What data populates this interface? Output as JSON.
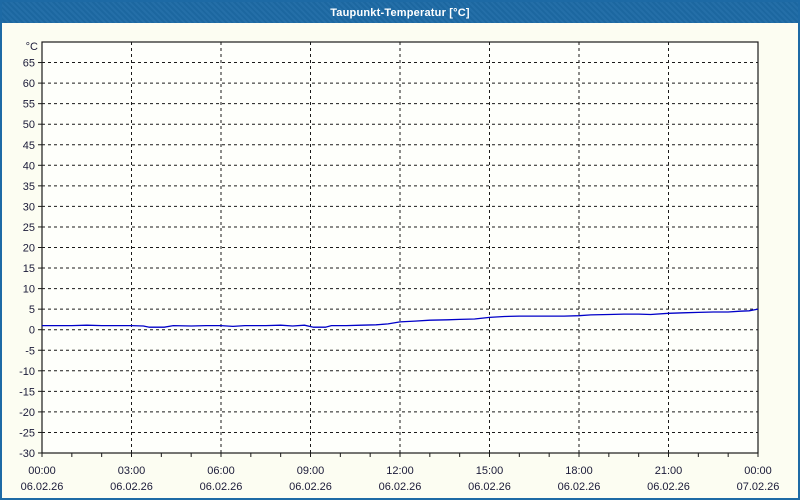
{
  "window": {
    "title": "Taupunkt-Temperatur [°C]"
  },
  "colors": {
    "titlebar_bg": "#1d6aa5",
    "titlebar_text": "#ffffff",
    "window_border": "#1d6aa5",
    "window_bg": "#fcfdf2",
    "plot_bg": "#fefffb",
    "plot_border": "#1a1a1a",
    "grid": "#1a1a1a",
    "tick_text": "#1a1a38",
    "line": "#0000c8"
  },
  "chart_data": {
    "type": "line",
    "title": "Taupunkt-Temperatur [°C]",
    "y_axis_unit": "°C",
    "ylim": [
      -30,
      70
    ],
    "xlim_hours": [
      0,
      24
    ],
    "grid": "dashed",
    "legend": "none",
    "y_tick_labels": [
      65,
      60,
      55,
      50,
      45,
      40,
      35,
      30,
      25,
      20,
      15,
      10,
      5,
      0,
      -5,
      -10,
      -15,
      -20,
      -25,
      -30
    ],
    "x_gridline_hours": [
      3,
      6,
      9,
      12,
      15,
      18,
      21
    ],
    "x_minor_tick_step_hours": 1,
    "x_ticks": [
      {
        "hour": 0,
        "time": "00:00",
        "date": "06.02.26"
      },
      {
        "hour": 3,
        "time": "03:00",
        "date": "06.02.26"
      },
      {
        "hour": 6,
        "time": "06:00",
        "date": "06.02.26"
      },
      {
        "hour": 9,
        "time": "09:00",
        "date": "06.02.26"
      },
      {
        "hour": 12,
        "time": "12:00",
        "date": "06.02.26"
      },
      {
        "hour": 15,
        "time": "15:00",
        "date": "06.02.26"
      },
      {
        "hour": 18,
        "time": "18:00",
        "date": "06.02.26"
      },
      {
        "hour": 21,
        "time": "21:00",
        "date": "06.02.26"
      },
      {
        "hour": 24,
        "time": "00:00",
        "date": "07.02.26"
      }
    ],
    "series": [
      {
        "name": "Taupunkt-Temperatur",
        "color": "#0000c8",
        "points": [
          [
            0,
            1.0
          ],
          [
            0.5,
            1.0
          ],
          [
            1,
            1.0
          ],
          [
            1.5,
            1.1
          ],
          [
            2,
            1.0
          ],
          [
            2.5,
            1.0
          ],
          [
            3,
            1.0
          ],
          [
            3.4,
            0.9
          ],
          [
            3.6,
            0.6
          ],
          [
            4.1,
            0.6
          ],
          [
            4.4,
            1.0
          ],
          [
            5,
            0.9
          ],
          [
            5.5,
            1.0
          ],
          [
            6,
            1.0
          ],
          [
            6.4,
            0.8
          ],
          [
            6.8,
            1.0
          ],
          [
            7.5,
            1.0
          ],
          [
            8,
            1.1
          ],
          [
            8.4,
            0.9
          ],
          [
            8.8,
            1.1
          ],
          [
            9.1,
            0.6
          ],
          [
            9.5,
            0.6
          ],
          [
            9.7,
            1.0
          ],
          [
            10.2,
            1.0
          ],
          [
            10.7,
            1.1
          ],
          [
            11.2,
            1.2
          ],
          [
            11.6,
            1.4
          ],
          [
            12,
            1.9
          ],
          [
            12.5,
            2.1
          ],
          [
            13,
            2.3
          ],
          [
            13.6,
            2.4
          ],
          [
            14,
            2.5
          ],
          [
            14.5,
            2.6
          ],
          [
            15,
            3.0
          ],
          [
            15.5,
            3.2
          ],
          [
            16,
            3.3
          ],
          [
            16.5,
            3.3
          ],
          [
            17,
            3.3
          ],
          [
            17.5,
            3.3
          ],
          [
            18,
            3.4
          ],
          [
            18.4,
            3.6
          ],
          [
            19,
            3.7
          ],
          [
            19.5,
            3.8
          ],
          [
            20,
            3.8
          ],
          [
            20.4,
            3.7
          ],
          [
            21,
            4.0
          ],
          [
            21.5,
            4.1
          ],
          [
            22,
            4.2
          ],
          [
            22.5,
            4.3
          ],
          [
            23,
            4.3
          ],
          [
            23.4,
            4.5
          ],
          [
            23.7,
            4.6
          ],
          [
            24,
            5.0
          ]
        ]
      }
    ]
  }
}
